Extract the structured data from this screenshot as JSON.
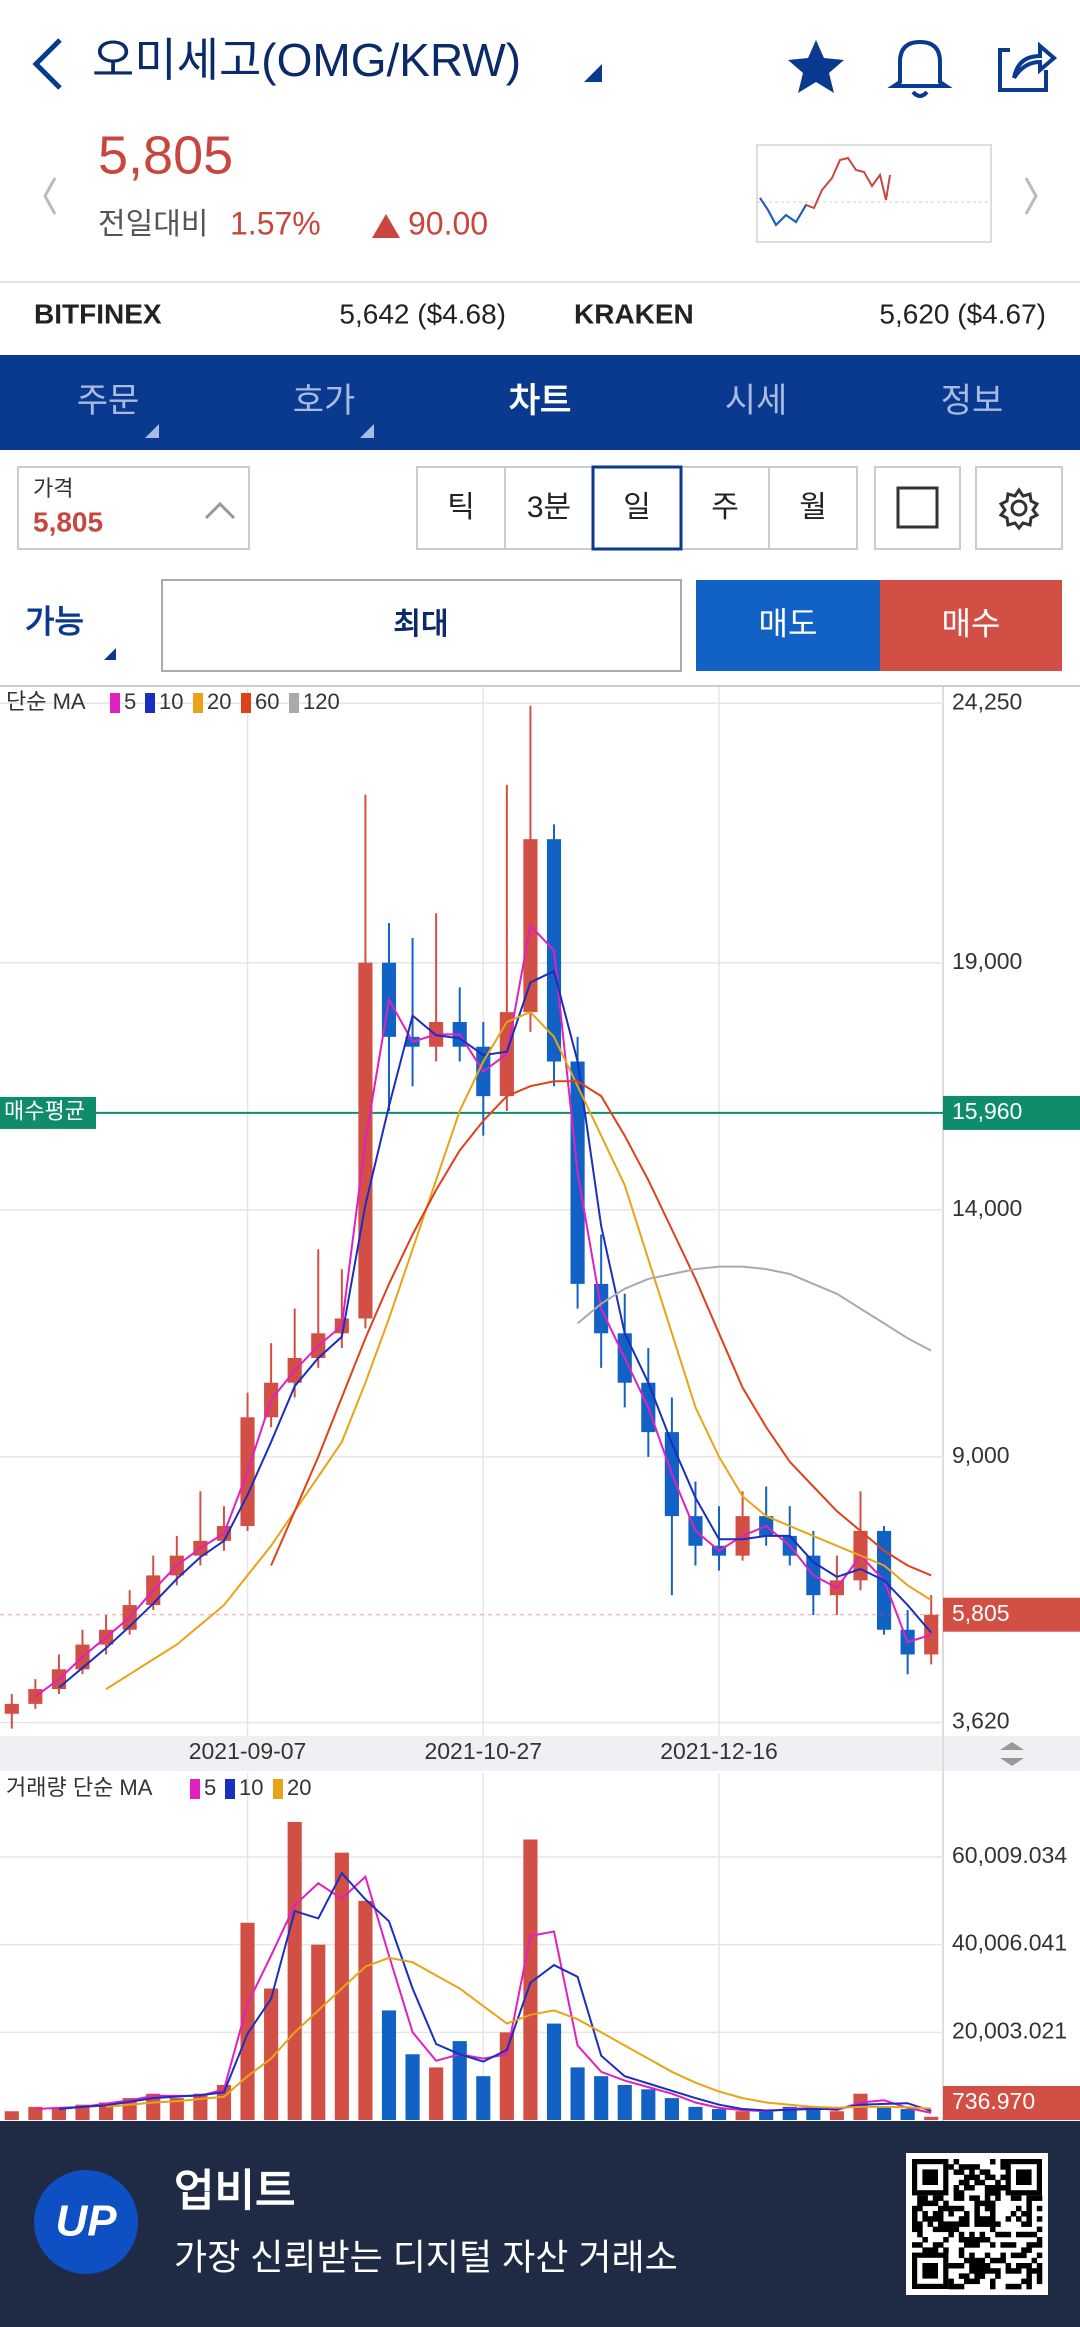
{
  "header": {
    "title": "오미세고(OMG/KRW)",
    "price": "5,805",
    "change_label": "전일대비",
    "change_rate": "1.57%",
    "change_amount": "90.00"
  },
  "exchanges": [
    {
      "name": "BITFINEX",
      "price": "5,642 ($4.68)"
    },
    {
      "name": "KRAKEN",
      "price": "5,620 ($4.67)"
    }
  ],
  "tabs": [
    "주문",
    "호가",
    "차트",
    "시세",
    "정보"
  ],
  "price_box": {
    "label": "가격",
    "value": "5,805"
  },
  "intervals": [
    "틱",
    "3분",
    "일",
    "주",
    "월"
  ],
  "order": {
    "available": "가능",
    "max": "최대",
    "sell": "매도",
    "buy": "매수"
  },
  "chart_data": [
    {
      "type": "candlestick",
      "legend_title": "단순 MA",
      "categories": [
        null,
        null,
        null,
        null,
        null,
        null,
        null,
        null,
        null,
        null,
        "2021-09-07",
        null,
        null,
        null,
        null,
        null,
        null,
        null,
        null,
        null,
        "2021-10-27",
        null,
        null,
        null,
        null,
        null,
        null,
        null,
        null,
        null,
        "2021-12-16",
        null,
        null,
        null,
        null,
        null,
        null,
        null,
        null,
        null
      ],
      "open": [
        3800,
        4000,
        4300,
        4700,
        5200,
        5500,
        6000,
        6600,
        7000,
        7300,
        7600,
        9800,
        10500,
        11000,
        11500,
        11800,
        19000,
        17500,
        17300,
        17800,
        17300,
        16300,
        18000,
        21500,
        17000,
        12500,
        11500,
        10500,
        9500,
        7800,
        7200,
        7000,
        7800,
        7400,
        7000,
        6200,
        6500,
        7500,
        5500,
        5000
      ],
      "high": [
        4200,
        4500,
        5000,
        5500,
        5800,
        6300,
        7000,
        7400,
        8300,
        8000,
        10300,
        11300,
        12000,
        13200,
        12800,
        22400,
        19800,
        19500,
        20000,
        18500,
        17800,
        22600,
        24200,
        21800,
        17500,
        13500,
        12300,
        11200,
        10200,
        8500,
        8000,
        8300,
        8400,
        8000,
        7500,
        7000,
        8300,
        7600,
        5900,
        6200
      ],
      "low": [
        3500,
        3900,
        4200,
        4600,
        5000,
        5400,
        5900,
        6400,
        6800,
        7100,
        7500,
        9600,
        10200,
        10800,
        11200,
        11600,
        16000,
        16500,
        17000,
        17000,
        15500,
        16000,
        17600,
        16500,
        12000,
        10800,
        10000,
        9000,
        6200,
        6800,
        6700,
        6900,
        7200,
        6800,
        5800,
        5800,
        6300,
        5400,
        4600,
        4800
      ],
      "close": [
        4000,
        4300,
        4700,
        5200,
        5500,
        6000,
        6600,
        7000,
        7300,
        7600,
        9800,
        10500,
        11000,
        11500,
        11800,
        19000,
        17500,
        17300,
        17800,
        17300,
        16300,
        18000,
        21500,
        17000,
        12500,
        11500,
        10500,
        9500,
        7800,
        7200,
        7000,
        7800,
        7400,
        7000,
        6200,
        6500,
        7500,
        5500,
        5000,
        5805
      ],
      "up_color": "#d24f45",
      "down_color": "#1261c4",
      "series": [
        {
          "name": "5",
          "color": "#e020c0",
          "values": [
            null,
            4150,
            4500,
            4950,
            5350,
            5750,
            6300,
            6800,
            7150,
            7450,
            8700,
            10150,
            10750,
            11250,
            11650,
            15400,
            18250,
            17400,
            17550,
            17550,
            16800,
            17150,
            19750,
            19250,
            14750,
            12000,
            11000,
            10000,
            8650,
            7500,
            7100,
            7400,
            7600,
            7200,
            6600,
            6350,
            7000,
            6500,
            5250,
            5400
          ]
        },
        {
          "name": "10",
          "color": "#1a2fbf",
          "values": [
            null,
            null,
            4330,
            4730,
            5130,
            5570,
            6030,
            6530,
            6970,
            7300,
            8230,
            9300,
            10430,
            11000,
            11430,
            14100,
            16100,
            17930,
            17530,
            17470,
            17130,
            17200,
            18600,
            18830,
            17000,
            13670,
            11500,
            10500,
            9270,
            8170,
            7330,
            7330,
            7400,
            7400,
            6870,
            6570,
            6730,
            6500,
            6000,
            5440
          ]
        },
        {
          "name": "20",
          "color": "#e8a317",
          "values": [
            null,
            null,
            null,
            null,
            4300,
            4600,
            4900,
            5200,
            5600,
            6000,
            6600,
            7200,
            7900,
            8600,
            9300,
            10500,
            11800,
            13200,
            14600,
            16000,
            17000,
            17800,
            18000,
            17500,
            16500,
            15500,
            14500,
            13000,
            11500,
            10000,
            9000,
            8200,
            7800,
            7600,
            7400,
            7200,
            7000,
            6800,
            6400,
            6100
          ]
        },
        {
          "name": "60",
          "color": "#e0401a",
          "values": [
            null,
            null,
            null,
            null,
            null,
            null,
            null,
            null,
            null,
            null,
            null,
            6800,
            7900,
            9000,
            10200,
            11400,
            12500,
            13500,
            14400,
            15200,
            15800,
            16300,
            16500,
            16600,
            16600,
            16300,
            15500,
            14600,
            13600,
            12600,
            11500,
            10400,
            9600,
            8900,
            8400,
            7900,
            7500,
            7100,
            6800,
            6600
          ]
        },
        {
          "name": "120",
          "color": "#aaaaaa",
          "values": [
            null,
            null,
            null,
            null,
            null,
            null,
            null,
            null,
            null,
            null,
            null,
            null,
            null,
            null,
            null,
            null,
            null,
            null,
            null,
            null,
            null,
            null,
            null,
            null,
            11700,
            12100,
            12400,
            12600,
            12700,
            12800,
            12850,
            12850,
            12800,
            12700,
            12500,
            12300,
            12000,
            11700,
            11400,
            11150
          ]
        }
      ],
      "ylim": [
        3350,
        24580
      ],
      "yticks": [
        {
          "value": 24250,
          "label": "24,250"
        },
        {
          "value": 19000,
          "label": "19,000"
        },
        {
          "value": 14000,
          "label": "14,000"
        },
        {
          "value": 9000,
          "label": "9,000"
        },
        {
          "value": 3620,
          "label": "3,620"
        }
      ],
      "grid": true,
      "avg_price": {
        "label": "매수평균",
        "value": 15960,
        "value_label": "15,960",
        "color": "#0f8c6b"
      },
      "current_price": {
        "value": 5805,
        "value_label": "5,805",
        "color": "#d24f45"
      }
    },
    {
      "type": "bar",
      "legend_title": "거래량 단순 MA",
      "values": [
        2000,
        3000,
        2500,
        3500,
        4000,
        5000,
        6000,
        5000,
        6000,
        8000,
        45000,
        30000,
        68000,
        40000,
        61000,
        50000,
        25000,
        15000,
        12000,
        18000,
        10000,
        20000,
        64000,
        22000,
        12000,
        10000,
        8000,
        7000,
        5000,
        3000,
        2500,
        2000,
        2000,
        3000,
        2500,
        2000,
        6000,
        3000,
        2500,
        736.97
      ],
      "series": [
        {
          "name": "5",
          "color": "#e020c0",
          "values": [
            null,
            2500,
            2750,
            3000,
            3750,
            4500,
            5500,
            5500,
            5500,
            7000,
            26500,
            37500,
            49000,
            54000,
            50500,
            55500,
            37500,
            20000,
            13500,
            15000,
            14000,
            15000,
            42000,
            43000,
            17000,
            11000,
            9000,
            7500,
            6000,
            4000,
            2750,
            2250,
            2000,
            2500,
            2750,
            2250,
            4000,
            4500,
            2750,
            1620
          ]
        },
        {
          "name": "10",
          "color": "#1a2fbf",
          "values": [
            null,
            null,
            2500,
            3000,
            3330,
            4170,
            5000,
            5330,
            5670,
            6330,
            19670,
            27670,
            47670,
            46000,
            56330,
            50330,
            45330,
            30000,
            17330,
            15000,
            13330,
            16000,
            31330,
            35330,
            32670,
            14670,
            10000,
            8330,
            6670,
            5000,
            3500,
            2500,
            2170,
            2330,
            2500,
            2500,
            3500,
            3670,
            3830,
            2080
          ]
        },
        {
          "name": "20",
          "color": "#e8a317",
          "values": [
            null,
            null,
            null,
            null,
            3000,
            3500,
            4000,
            4300,
            4800,
            5300,
            10000,
            14000,
            20000,
            25000,
            30000,
            35000,
            37000,
            36000,
            33000,
            30000,
            26000,
            22000,
            24000,
            25000,
            23000,
            20000,
            17000,
            14000,
            11000,
            8500,
            6500,
            5000,
            4000,
            3500,
            3000,
            2800,
            3000,
            3000,
            2900,
            2600
          ]
        }
      ],
      "ylim": [
        0,
        79170
      ],
      "yticks": [
        {
          "value": 60009.034,
          "label": "60,009.034"
        },
        {
          "value": 40006.041,
          "label": "40,006.041"
        },
        {
          "value": 20003.021,
          "label": "20,003.021"
        }
      ],
      "grid": true,
      "current_value": {
        "value": 736.97,
        "label": "736.970",
        "color": "#d24f45"
      }
    }
  ],
  "banner": {
    "logo": "UP",
    "title": "업비트",
    "subtitle": "가장 신뢰받는 디지털 자산 거래소"
  }
}
